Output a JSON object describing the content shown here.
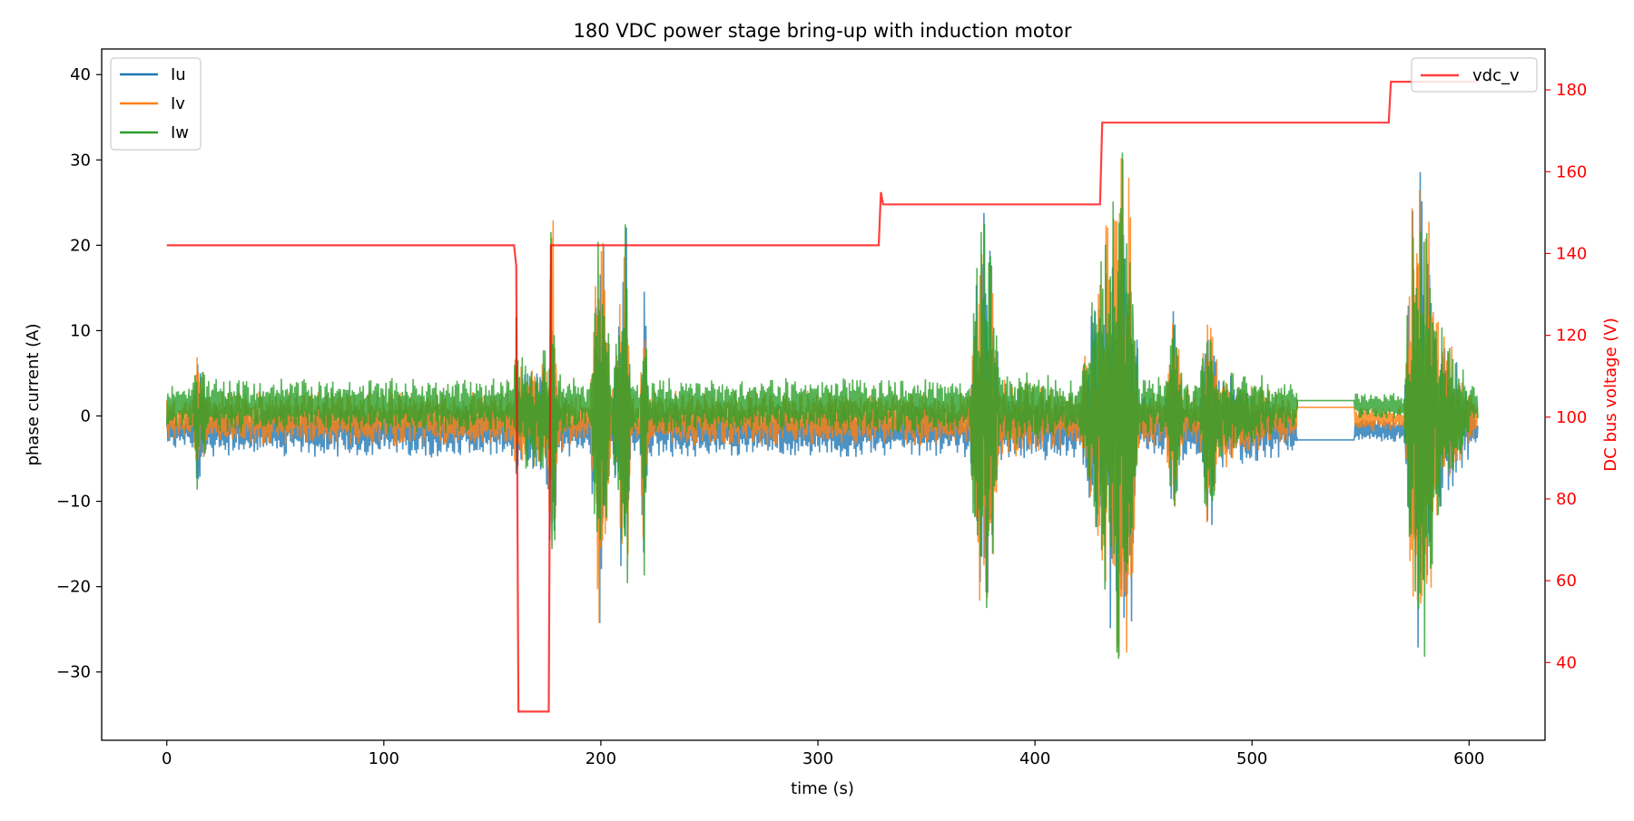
{
  "chart_data": {
    "type": "line",
    "title": "180 VDC power stage bring-up with induction motor",
    "xlabel": "time (s)",
    "ylabel_left": "phase current (A)",
    "ylabel_right": "DC bus voltage (V)",
    "xlim": [
      -30,
      635
    ],
    "ylim_left": [
      -38,
      43
    ],
    "ylim_right": [
      21,
      190
    ],
    "x_ticks": [
      0,
      100,
      200,
      300,
      400,
      500,
      600
    ],
    "y_ticks_left": [
      -30,
      -20,
      -10,
      0,
      10,
      20,
      30,
      40
    ],
    "y_ticks_right": [
      40,
      60,
      80,
      100,
      120,
      140,
      160,
      180
    ],
    "grid": false,
    "legend_left": {
      "placement": "upper-left",
      "entries": [
        "Iu",
        "Iv",
        "Iw"
      ]
    },
    "legend_right": {
      "placement": "upper-right",
      "entries": [
        "vdc_v"
      ]
    },
    "series_colors": {
      "Iu": "#1f77b4",
      "Iv": "#ff7f0e",
      "Iw": "#2ca02c",
      "vdc_v": "#ff0000"
    },
    "right_axis_color": "#ff0000",
    "current_series": [
      {
        "name": "Iu",
        "baseline_offset": -1.6
      },
      {
        "name": "Iv",
        "baseline_offset": -0.3
      },
      {
        "name": "Iw",
        "baseline_offset": 1.2
      }
    ],
    "current_envelope": {
      "description_points_x": [
        0,
        12,
        14,
        16,
        20,
        160,
        161,
        162,
        176,
        177,
        178,
        180,
        195,
        199,
        201,
        205,
        210,
        212,
        214,
        218,
        220,
        222,
        330,
        370,
        372,
        376,
        380,
        384,
        400,
        420,
        436,
        440,
        444,
        448,
        460,
        464,
        468,
        476,
        480,
        484,
        520,
        548,
        570,
        574,
        578,
        582,
        586,
        604
      ],
      "amplitude": [
        3,
        3,
        13,
        8,
        4,
        4,
        25,
        8,
        10,
        30,
        30,
        5,
        3,
        33,
        28,
        4,
        25,
        30,
        5,
        3,
        28,
        4,
        4,
        4,
        20,
        32,
        25,
        6,
        5,
        4,
        35,
        39,
        34,
        5,
        4,
        18,
        5,
        4,
        21,
        8,
        3,
        2,
        2,
        35,
        38,
        30,
        15,
        2
      ]
    },
    "flat_segment": {
      "x": [
        521,
        547
      ],
      "values": {
        "Iu": -2.8,
        "Iv": 1.0,
        "Iw": 1.8
      }
    },
    "vdc_series": {
      "name": "vdc_v",
      "x": [
        0,
        160,
        161,
        162,
        176,
        177,
        178,
        328,
        329,
        330,
        430,
        431,
        563,
        564,
        604
      ],
      "values": [
        142,
        142,
        137,
        28,
        28,
        142,
        142,
        142,
        155,
        152,
        152,
        172,
        172,
        182,
        182
      ]
    }
  }
}
